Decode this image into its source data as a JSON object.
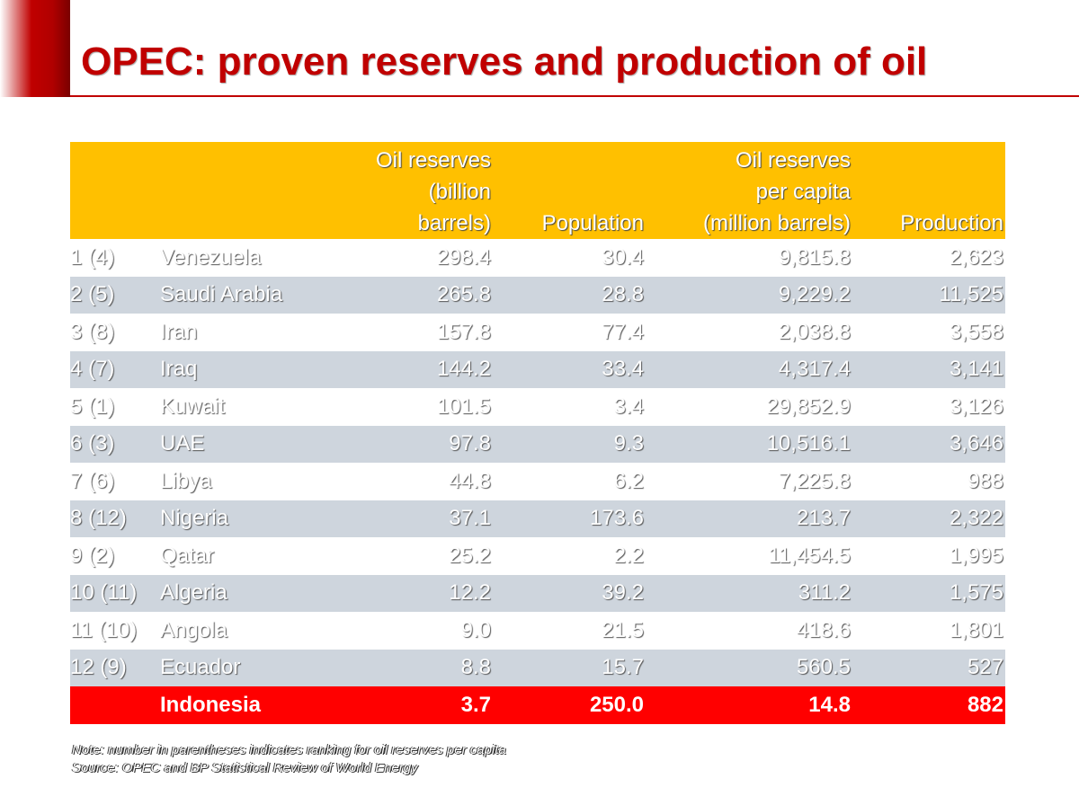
{
  "title": "OPEC: proven reserves and production of oil",
  "table": {
    "headers": {
      "rank": "",
      "country": "",
      "reserves": [
        "Oil reserves",
        "(billion",
        "barrels)"
      ],
      "population": "Population",
      "per_capita": [
        "Oil reserves",
        "per capita",
        "(million barrels)"
      ],
      "production": "Production"
    },
    "rows": [
      {
        "rank": "1 (4)",
        "country": "Venezuela",
        "reserves": "298.4",
        "population": "30.4",
        "per_capita": "9,815.8",
        "production": "2,623"
      },
      {
        "rank": "2 (5)",
        "country": "Saudi Arabia",
        "reserves": "265.8",
        "population": "28.8",
        "per_capita": "9,229.2",
        "production": "11,525"
      },
      {
        "rank": "3 (8)",
        "country": "Iran",
        "reserves": "157.8",
        "population": "77.4",
        "per_capita": "2,038.8",
        "production": "3,558"
      },
      {
        "rank": "4 (7)",
        "country": "Iraq",
        "reserves": "144.2",
        "population": "33.4",
        "per_capita": "4,317.4",
        "production": "3,141"
      },
      {
        "rank": "5 (1)",
        "country": "Kuwait",
        "reserves": "101.5",
        "population": "3.4",
        "per_capita": "29,852.9",
        "production": "3,126"
      },
      {
        "rank": "6 (3)",
        "country": "UAE",
        "reserves": "97.8",
        "population": "9.3",
        "per_capita": "10,516.1",
        "production": "3,646"
      },
      {
        "rank": "7 (6)",
        "country": "Libya",
        "reserves": "44.8",
        "population": "6.2",
        "per_capita": "7,225.8",
        "production": "988"
      },
      {
        "rank": "8 (12)",
        "country": "Nigeria",
        "reserves": "37.1",
        "population": "173.6",
        "per_capita": "213.7",
        "production": "2,322"
      },
      {
        "rank": "9 (2)",
        "country": "Qatar",
        "reserves": "25.2",
        "population": "2.2",
        "per_capita": "11,454.5",
        "production": "1,995"
      },
      {
        "rank": "10 (11)",
        "country": "Algeria",
        "reserves": "12.2",
        "population": "39.2",
        "per_capita": "311.2",
        "production": "1,575"
      },
      {
        "rank": "11 (10)",
        "country": "Angola",
        "reserves": "9.0",
        "population": "21.5",
        "per_capita": "418.6",
        "production": "1,801"
      },
      {
        "rank": "12 (9)",
        "country": "Ecuador",
        "reserves": "8.8",
        "population": "15.7",
        "per_capita": "560.5",
        "production": "527"
      }
    ],
    "highlight_row": {
      "rank": "",
      "country": "Indonesia",
      "reserves": "3.7",
      "population": "250.0",
      "per_capita": "14.8",
      "production": "882"
    }
  },
  "footnote": {
    "note": "Note: number in parentheses indicates ranking for oil reserves per capita",
    "source": "Source: OPEC and BP Statistical Review of World Energy"
  },
  "colors": {
    "title": "#c00000",
    "header_bg": "#ffc000",
    "row_alt_bg": "#ced5dd",
    "highlight_bg": "#ff0000"
  }
}
